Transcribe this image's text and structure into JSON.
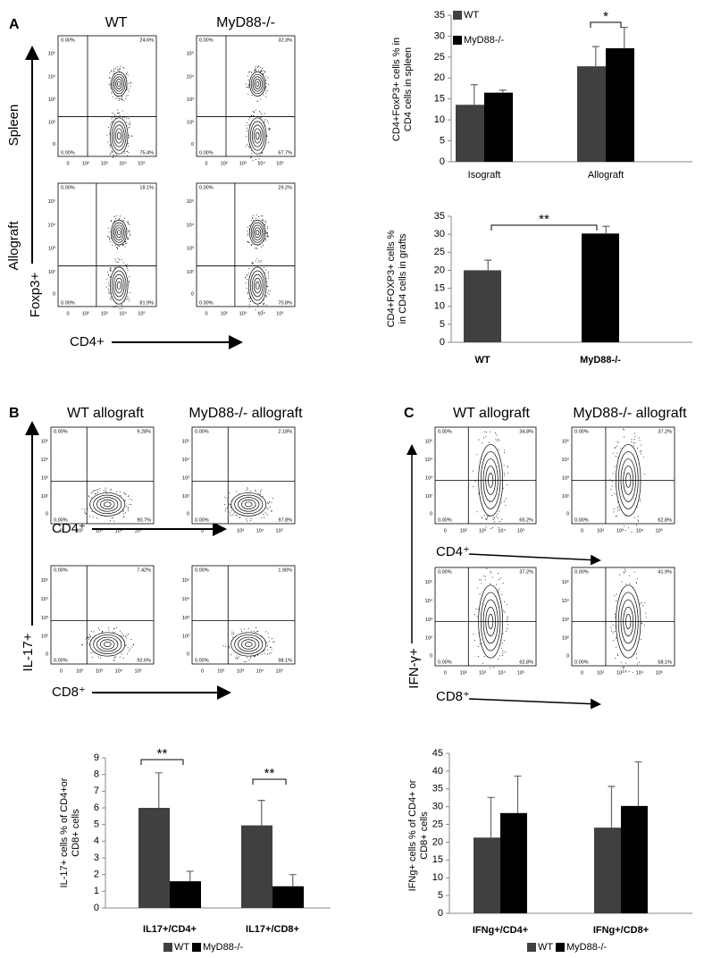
{
  "panel_labels": [
    "A",
    "B",
    "C"
  ],
  "flow_ticks": [
    "0",
    "10²",
    "10³",
    "10⁴",
    "10⁵"
  ],
  "panel_a": {
    "columns": [
      "WT",
      "MyD88-/-"
    ],
    "rows": [
      "Spleen",
      "Allograft"
    ],
    "y_label": "Foxp3+",
    "x_label": "CD4+",
    "plots": [
      [
        "0.00%",
        "24.6%",
        "0.00%",
        "75.4%"
      ],
      [
        "0.00%",
        "32.3%",
        "0.00%",
        "67.7%"
      ],
      [
        "0.00%",
        "18.1%",
        "0.00%",
        "81.9%"
      ],
      [
        "0.00%",
        "29.2%",
        "0.00%",
        "70.8%"
      ]
    ]
  },
  "panel_b": {
    "columns": [
      "WT allograft",
      "MyD88-/- allograft"
    ],
    "y_label": "IL-17+",
    "x_labels": [
      "CD4⁺",
      "CD8⁺"
    ],
    "plots": [
      [
        "0.00%",
        "9.28%",
        "0.00%",
        "90.7%"
      ],
      [
        "0.00%",
        "2.18%",
        "0.00%",
        "97.8%"
      ],
      [
        "0.00%",
        "7.42%",
        "0.00%",
        "92.6%"
      ],
      [
        "0.00%",
        "1.90%",
        "0.00%",
        "98.1%"
      ]
    ]
  },
  "panel_c": {
    "columns": [
      "WT allograft",
      "MyD88-/- allograft"
    ],
    "y_label": "IFN-γ+",
    "x_labels": [
      "CD4⁺",
      "CD8⁺"
    ],
    "plots": [
      [
        "0.00%",
        "34.8%",
        "0.00%",
        "65.2%"
      ],
      [
        "0.00%",
        "37.2%",
        "0.00%",
        "62.8%"
      ],
      [
        "0.00%",
        "37.2%",
        "0.00%",
        "62.8%"
      ],
      [
        "0.00%",
        "41.9%",
        "0.00%",
        "58.1%"
      ]
    ]
  },
  "chart_data": [
    {
      "type": "bar",
      "ylabel": [
        "CD4+FoxP3+ cells % in",
        "CD4 cells in spleen"
      ],
      "categories": [
        "Isograft",
        "Allograft"
      ],
      "series": [
        {
          "name": "WT",
          "color": "#404040",
          "values": [
            13.6,
            22.8
          ],
          "errors": [
            4.8,
            4.7
          ]
        },
        {
          "name": "MyD88-/-",
          "color": "#000000",
          "values": [
            16.5,
            27.1
          ],
          "errors": [
            0.6,
            5.0
          ]
        }
      ],
      "ylim": [
        0,
        35
      ],
      "yticks": [
        0,
        5,
        10,
        15,
        20,
        25,
        30,
        35
      ],
      "annotations": [
        "*"
      ]
    },
    {
      "type": "bar",
      "ylabel": [
        "CD4+FOXP3+ cells %",
        "in CD4 cells in grafts"
      ],
      "categories": [
        "WT",
        "MyD88-/-"
      ],
      "values": [
        20.0,
        30.2
      ],
      "errors": [
        2.8,
        2.0
      ],
      "colors": [
        "#404040",
        "#000000"
      ],
      "ylim": [
        0,
        35
      ],
      "yticks": [
        0,
        5,
        10,
        15,
        20,
        25,
        30,
        35
      ],
      "annotations": [
        "**"
      ]
    },
    {
      "type": "bar",
      "ylabel": [
        "IL-17+ cells % of  CD4+or",
        "CD8+ cells"
      ],
      "categories": [
        "IL17+/CD4+",
        "IL17+/CD8+"
      ],
      "series": [
        {
          "name": "WT",
          "color": "#404040",
          "values": [
            6.0,
            4.95
          ],
          "errors": [
            2.1,
            1.5
          ]
        },
        {
          "name": "MyD88-/-",
          "color": "#000000",
          "values": [
            1.6,
            1.3
          ],
          "errors": [
            0.6,
            0.7
          ]
        }
      ],
      "ylim": [
        0,
        9
      ],
      "yticks": [
        0,
        1,
        2,
        3,
        4,
        5,
        6,
        7,
        8,
        9
      ],
      "annotations": [
        "**",
        "**"
      ]
    },
    {
      "type": "bar",
      "ylabel": [
        "IFNg+ cells % of CD4+ or",
        "CD8+  cells"
      ],
      "categories": [
        "IFNg+/CD4+",
        "IFNg+/CD8+"
      ],
      "series": [
        {
          "name": "WT",
          "color": "#404040",
          "values": [
            21.3,
            24.1
          ],
          "errors": [
            11.3,
            11.6
          ]
        },
        {
          "name": "MyD88-/-",
          "color": "#000000",
          "values": [
            28.2,
            30.2
          ],
          "errors": [
            10.4,
            12.4
          ]
        }
      ],
      "ylim": [
        0,
        45
      ],
      "yticks": [
        0,
        5,
        10,
        15,
        20,
        25,
        30,
        35,
        40,
        45
      ],
      "annotations": []
    }
  ]
}
